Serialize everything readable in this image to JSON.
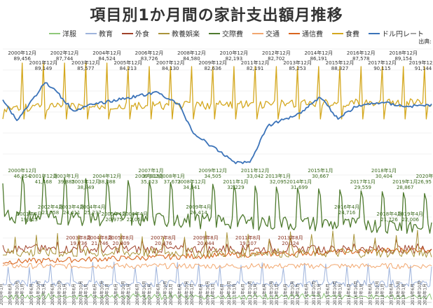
{
  "chart_data": {
    "type": "line",
    "title": "項目別1か月間の家計支出額月推移",
    "source": "出典:",
    "series": [
      {
        "name": "洋服",
        "color": "#8fc97a"
      },
      {
        "name": "教育",
        "color": "#9fb4dc"
      },
      {
        "name": "外食",
        "color": "#a0422a"
      },
      {
        "name": "教養娯楽",
        "color": "#a9943a"
      },
      {
        "name": "交際費",
        "color": "#4e7a2e"
      },
      {
        "name": "交通",
        "color": "#f2a870"
      },
      {
        "name": "通信費",
        "color": "#d9651e"
      },
      {
        "name": "食費",
        "color": "#d4a81f"
      },
      {
        "name": "ドル円レート",
        "color": "#3b73b9"
      }
    ],
    "food_peaks": [
      {
        "label": "2000年12月",
        "value": "89,456"
      },
      {
        "label": "2001年12月",
        "value": "89,149"
      },
      {
        "label": "2002年12月",
        "value": "87,744"
      },
      {
        "label": "2003年12月",
        "value": "85,577"
      },
      {
        "label": "2004年12月",
        "value": "84,524"
      },
      {
        "label": "2005年12月",
        "value": "84,213"
      },
      {
        "label": "2006年12月",
        "value": "83,726"
      },
      {
        "label": "2007年12月",
        "value": "84,130"
      },
      {
        "label": "2008年12月",
        "value": "84,580"
      },
      {
        "label": "2009年12月",
        "value": "82,636"
      },
      {
        "label": "2010年12月",
        "value": "82,193"
      },
      {
        "label": "2011年12月",
        "value": "82,191"
      },
      {
        "label": "2012年12月",
        "value": "82,702"
      },
      {
        "label": "2013年12月",
        "value": "85,253"
      },
      {
        "label": "2014年12月",
        "value": "86,191"
      },
      {
        "label": "2015年12月",
        "value": "88,327"
      },
      {
        "label": "2016年12月",
        "value": "87,578"
      },
      {
        "label": "2017年12月",
        "value": "90,115"
      },
      {
        "label": "2018年12月",
        "value": "89,154"
      },
      {
        "label": "2019年12月",
        "value": "91,144"
      }
    ],
    "social_labels": [
      {
        "label": "2000年12月",
        "value": "46,354"
      },
      {
        "label": "2001年12月",
        "value": "41,468"
      },
      {
        "label": "2002年4月",
        "value": "23,758"
      },
      {
        "label": "2001年4月",
        "value": "19,825"
      },
      {
        "label": "2003年1月",
        "value": "39,885"
      },
      {
        "label": "2003年12月",
        "value": "38,849"
      },
      {
        "label": "2003年4月",
        "value": "24,411"
      },
      {
        "label": "2004年12月",
        "value": "38,088"
      },
      {
        "label": "2004年4月",
        "value": "25,237"
      },
      {
        "label": "2005年4月",
        "value": "20,975"
      },
      {
        "label": "2006年12月",
        "value": "35,523"
      },
      {
        "label": "2006年4月",
        "value": "22,053"
      },
      {
        "label": "2007年1月",
        "value": "37,319"
      },
      {
        "label": "2008年1月",
        "value": "37,673"
      },
      {
        "label": "2008年12月",
        "value": "34,641"
      },
      {
        "label": "2009年12月",
        "value": "34,505"
      },
      {
        "label": "2009年4月",
        "value": "26,414"
      },
      {
        "label": "2011年1月",
        "value": "32,229"
      },
      {
        "label": "2011年12月",
        "value": "33,042"
      },
      {
        "label": "2013年1月",
        "value": "32,095"
      },
      {
        "label": "2014年1月",
        "value": "31,699"
      },
      {
        "label": "2015年1月",
        "value": "30,667"
      },
      {
        "label": "2016年4月",
        "value": "24,716"
      },
      {
        "label": "2017年1月",
        "value": "29,559"
      },
      {
        "label": "2018年1月",
        "value": "30,404"
      },
      {
        "label": "2018年4月",
        "value": "21,726"
      },
      {
        "label": "2019年1月",
        "value": "28,867"
      },
      {
        "label": "2019年4月",
        "value": "22,006"
      },
      {
        "label": "2020年",
        "value": "26,95"
      }
    ],
    "dining_labels": [
      {
        "label": "2003年8月",
        "value": "19,736"
      },
      {
        "label": "2004年8月",
        "value": "21,746"
      },
      {
        "label": "2005年8月",
        "value": "20,809"
      },
      {
        "label": "2007年8月",
        "value": "20,476"
      },
      {
        "label": "2009年8月",
        "value": "20,044"
      },
      {
        "label": "2011年8月",
        "value": "19,107"
      },
      {
        "label": "2013年8月",
        "value": "20,324"
      }
    ],
    "x_start": "2000年1月",
    "x_end": "2020年",
    "x_tick_months": [
      "1月",
      "6月",
      "10月"
    ]
  }
}
